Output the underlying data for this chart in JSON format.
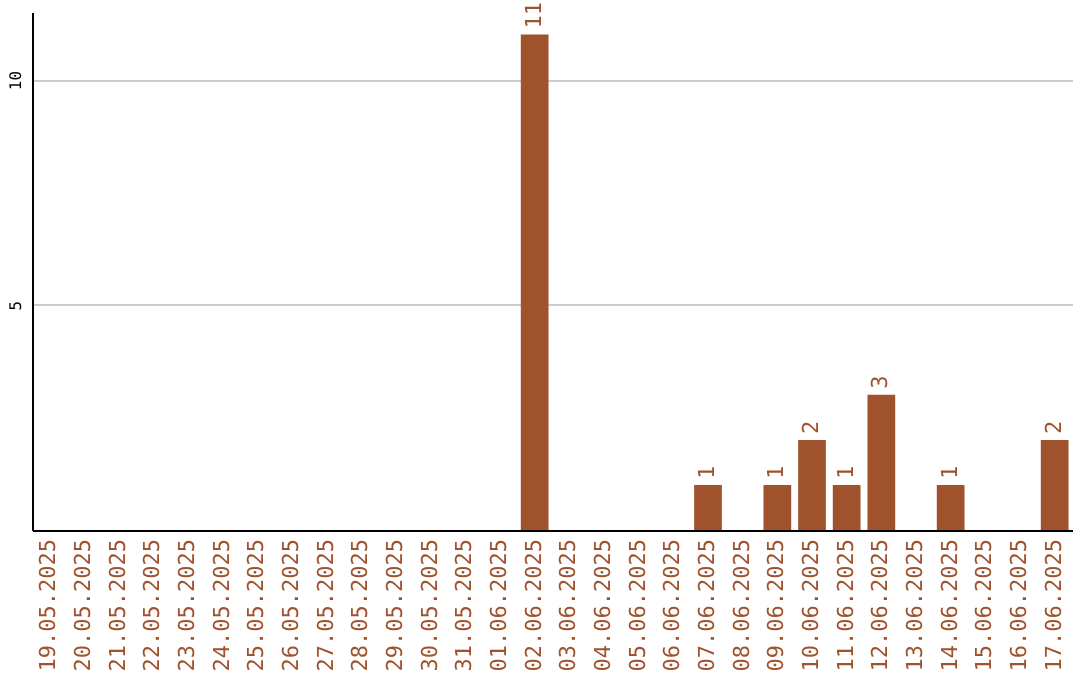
{
  "chart_data": {
    "type": "bar",
    "categories": [
      "19.05.2025",
      "20.05.2025",
      "21.05.2025",
      "22.05.2025",
      "23.05.2025",
      "24.05.2025",
      "25.05.2025",
      "26.05.2025",
      "27.05.2025",
      "28.05.2025",
      "29.05.2025",
      "30.05.2025",
      "31.05.2025",
      "01.06.2025",
      "02.06.2025",
      "03.06.2025",
      "04.06.2025",
      "05.06.2025",
      "06.06.2025",
      "07.06.2025",
      "08.06.2025",
      "09.06.2025",
      "10.06.2025",
      "11.06.2025",
      "12.06.2025",
      "13.06.2025",
      "14.06.2025",
      "15.06.2025",
      "16.06.2025",
      "17.06.2025"
    ],
    "values": [
      0,
      0,
      0,
      0,
      0,
      0,
      0,
      0,
      0,
      0,
      0,
      0,
      0,
      0,
      11,
      0,
      0,
      0,
      0,
      1,
      0,
      1,
      2,
      1,
      3,
      0,
      1,
      0,
      0,
      2
    ],
    "value_labels": [
      null,
      null,
      null,
      null,
      null,
      null,
      null,
      null,
      null,
      null,
      null,
      null,
      null,
      null,
      "11",
      null,
      null,
      null,
      null,
      "1",
      null,
      "1",
      "2",
      "1",
      "3",
      null,
      "1",
      null,
      null,
      "2"
    ],
    "color": "#a0522d",
    "ylim": [
      0,
      11.5
    ],
    "yticks": [
      5,
      10
    ],
    "grid": "y"
  }
}
